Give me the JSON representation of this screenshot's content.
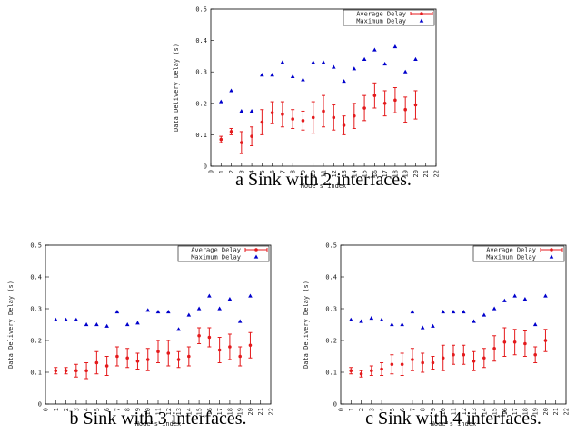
{
  "chart_data": [
    {
      "type": "errorbar-scatter",
      "caption": "a Sink with 2 interfaces.",
      "xlabel": "Node's index",
      "ylabel": "Data Delivery Delay (s)",
      "xlim": [
        0,
        22
      ],
      "ylim": [
        0,
        0.5
      ],
      "xticks": [
        0,
        1,
        2,
        3,
        4,
        5,
        6,
        7,
        8,
        9,
        10,
        11,
        12,
        13,
        14,
        15,
        16,
        17,
        18,
        19,
        20,
        21,
        22
      ],
      "yticks": [
        0,
        0.1,
        0.2,
        0.3,
        0.4,
        0.5
      ],
      "legend": "top-right",
      "x": [
        1,
        2,
        3,
        4,
        5,
        6,
        7,
        8,
        9,
        10,
        11,
        12,
        13,
        14,
        15,
        16,
        17,
        18,
        19,
        20
      ],
      "series": [
        {
          "name": "Average Delay",
          "color": "#e41a1c",
          "marker": "circle",
          "values": [
            0.085,
            0.11,
            0.075,
            0.095,
            0.14,
            0.17,
            0.165,
            0.15,
            0.145,
            0.155,
            0.175,
            0.155,
            0.13,
            0.16,
            0.185,
            0.225,
            0.2,
            0.21,
            0.18,
            0.195
          ],
          "errors": [
            0.01,
            0.01,
            0.035,
            0.03,
            0.04,
            0.035,
            0.04,
            0.03,
            0.03,
            0.05,
            0.05,
            0.04,
            0.03,
            0.04,
            0.04,
            0.04,
            0.04,
            0.04,
            0.04,
            0.045
          ]
        },
        {
          "name": "Maximum Delay",
          "color": "#0000cc",
          "marker": "triangle",
          "values": [
            0.205,
            0.24,
            0.175,
            0.175,
            0.29,
            0.29,
            0.33,
            0.285,
            0.275,
            0.33,
            0.33,
            0.315,
            0.27,
            0.31,
            0.34,
            0.37,
            0.325,
            0.38,
            0.3,
            0.34
          ]
        }
      ]
    },
    {
      "type": "errorbar-scatter",
      "caption": "b Sink with 3 interfaces.",
      "xlabel": "Node's index",
      "ylabel": "Data Delivery Delay (s)",
      "xlim": [
        0,
        22
      ],
      "ylim": [
        0,
        0.5
      ],
      "xticks": [
        0,
        1,
        2,
        3,
        4,
        5,
        6,
        7,
        8,
        9,
        10,
        11,
        12,
        13,
        14,
        15,
        16,
        17,
        18,
        19,
        20,
        21,
        22
      ],
      "yticks": [
        0,
        0.1,
        0.2,
        0.3,
        0.4,
        0.5
      ],
      "legend": "top-right",
      "x": [
        1,
        2,
        3,
        4,
        5,
        6,
        7,
        8,
        9,
        10,
        11,
        12,
        13,
        14,
        15,
        16,
        17,
        18,
        19,
        20
      ],
      "series": [
        {
          "name": "Average Delay",
          "color": "#e41a1c",
          "marker": "circle",
          "values": [
            0.105,
            0.105,
            0.105,
            0.105,
            0.13,
            0.12,
            0.15,
            0.145,
            0.135,
            0.14,
            0.165,
            0.16,
            0.14,
            0.15,
            0.215,
            0.21,
            0.17,
            0.18,
            0.15,
            0.185
          ],
          "errors": [
            0.01,
            0.01,
            0.02,
            0.025,
            0.035,
            0.03,
            0.03,
            0.03,
            0.025,
            0.035,
            0.035,
            0.04,
            0.025,
            0.03,
            0.025,
            0.03,
            0.04,
            0.04,
            0.03,
            0.04
          ]
        },
        {
          "name": "Maximum Delay",
          "color": "#0000cc",
          "marker": "triangle",
          "values": [
            0.265,
            0.265,
            0.265,
            0.25,
            0.25,
            0.245,
            0.29,
            0.25,
            0.255,
            0.295,
            0.29,
            0.29,
            0.235,
            0.28,
            0.3,
            0.34,
            0.3,
            0.33,
            0.26,
            0.34
          ]
        }
      ]
    },
    {
      "type": "errorbar-scatter",
      "caption": "c Sink with 4 interfaces.",
      "xlabel": "Node's index",
      "ylabel": "Data Delivery Delay (s)",
      "xlim": [
        0,
        22
      ],
      "ylim": [
        0,
        0.5
      ],
      "xticks": [
        0,
        1,
        2,
        3,
        4,
        5,
        6,
        7,
        8,
        9,
        10,
        11,
        12,
        13,
        14,
        15,
        16,
        17,
        18,
        19,
        20,
        21,
        22
      ],
      "yticks": [
        0,
        0.1,
        0.2,
        0.3,
        0.4,
        0.5
      ],
      "legend": "top-right",
      "x": [
        1,
        2,
        3,
        4,
        5,
        6,
        7,
        8,
        9,
        10,
        11,
        12,
        13,
        14,
        15,
        16,
        17,
        18,
        19,
        20
      ],
      "series": [
        {
          "name": "Average Delay",
          "color": "#e41a1c",
          "marker": "circle",
          "values": [
            0.105,
            0.095,
            0.105,
            0.11,
            0.125,
            0.125,
            0.14,
            0.13,
            0.13,
            0.145,
            0.155,
            0.155,
            0.135,
            0.145,
            0.175,
            0.195,
            0.195,
            0.19,
            0.155,
            0.2
          ],
          "errors": [
            0.01,
            0.01,
            0.015,
            0.02,
            0.03,
            0.035,
            0.035,
            0.03,
            0.02,
            0.04,
            0.03,
            0.03,
            0.03,
            0.03,
            0.04,
            0.045,
            0.04,
            0.04,
            0.025,
            0.035
          ]
        },
        {
          "name": "Maximum Delay",
          "color": "#0000cc",
          "marker": "triangle",
          "values": [
            0.265,
            0.26,
            0.27,
            0.265,
            0.25,
            0.25,
            0.29,
            0.24,
            0.245,
            0.29,
            0.29,
            0.29,
            0.26,
            0.28,
            0.3,
            0.325,
            0.34,
            0.33,
            0.25,
            0.34
          ]
        }
      ]
    }
  ]
}
